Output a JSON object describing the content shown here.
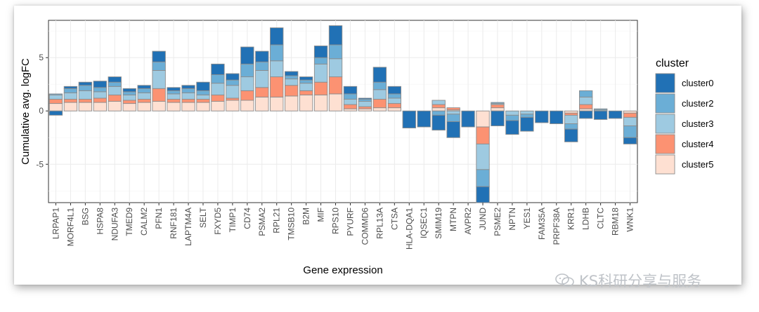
{
  "chart_data": {
    "type": "bar",
    "stacked": true,
    "title": "",
    "xlabel": "Gene expression",
    "ylabel": "Cumulative avg. logFC",
    "ylim": [
      -8.6,
      8.5
    ],
    "yticks": [
      -5,
      0,
      5
    ],
    "grid": true,
    "legend_title": "cluster",
    "legend_position": "right",
    "categories": [
      "LRPAP1",
      "MORF4L1",
      "BSG",
      "HSPA8",
      "NDUFA3",
      "TMED9",
      "CALM2",
      "PFN1",
      "RNF181",
      "LAPTM4A",
      "SELT",
      "FXYD5",
      "TIMP1",
      "CD74",
      "PSMA2",
      "RPL21",
      "TMSB10",
      "B2M",
      "MIF",
      "RPS10",
      "PYURF",
      "COMMD6",
      "RPL13A",
      "CTSA",
      "HLA-DQA1",
      "IQSEC1",
      "SMIM19",
      "MTPN",
      "AVPR2",
      "JUND",
      "PSME2",
      "NPTN",
      "YES1",
      "FAM35A",
      "PRPF38A",
      "KRR1",
      "LDHB",
      "CLTC",
      "RBM18",
      "WNK1"
    ],
    "series": [
      {
        "name": "cluster0",
        "color": "#2171b5",
        "values": [
          -0.4,
          0.2,
          0.3,
          0.6,
          0.5,
          0.3,
          0.3,
          1.0,
          0.3,
          0.3,
          0.8,
          1.0,
          0.6,
          1.6,
          1.0,
          1.6,
          0.4,
          0.3,
          1.1,
          1.8,
          0.7,
          0.1,
          1.4,
          0.7,
          -1.6,
          -1.5,
          -1.4,
          -1.5,
          -1.5,
          -1.5,
          -1.4,
          -1.3,
          -1.3,
          -1.1,
          -1.2,
          -1.2,
          -0.7,
          -0.8,
          -0.7,
          -0.6
        ]
      },
      {
        "name": "cluster2",
        "color": "#6baed6",
        "values": [
          0.1,
          0.4,
          0.5,
          0.4,
          0.4,
          0.3,
          0.4,
          0.8,
          0.3,
          0.4,
          0.4,
          0.8,
          0.5,
          1.2,
          0.8,
          1.5,
          0.3,
          0.3,
          0.6,
          1.3,
          0.5,
          0.2,
          0.7,
          0.4,
          0,
          0,
          -0.4,
          -0.7,
          0,
          -1.6,
          0.1,
          -0.5,
          -0.3,
          0,
          0,
          -0.5,
          0.6,
          0.1,
          0,
          -1.1
        ]
      },
      {
        "name": "cluster3",
        "color": "#9ecae1",
        "values": [
          0.4,
          0.6,
          0.8,
          0.6,
          0.8,
          0.5,
          0.6,
          1.7,
          0.5,
          0.6,
          0.4,
          1.1,
          1.2,
          1.3,
          1.6,
          1.5,
          0.6,
          0.7,
          1.7,
          1.7,
          0.5,
          0.5,
          0.9,
          0.5,
          0,
          0,
          0.4,
          -0.3,
          0,
          -2.4,
          0.1,
          -0.4,
          -0.3,
          0,
          0,
          -0.8,
          0.7,
          0.1,
          0,
          -0.8
        ]
      },
      {
        "name": "cluster4",
        "color": "#fc9272",
        "values": [
          0.4,
          0.3,
          0.3,
          0.4,
          0.6,
          0.3,
          0.3,
          1.2,
          0.3,
          0.3,
          0.3,
          0.6,
          0.2,
          0.9,
          0.9,
          1.9,
          1.0,
          0.4,
          1.2,
          1.6,
          0.4,
          0.2,
          0.8,
          0.4,
          0,
          0,
          0.3,
          0.2,
          0,
          -1.6,
          0.3,
          0,
          0,
          0,
          0,
          -0.2,
          0.4,
          0,
          0,
          -0.4
        ]
      },
      {
        "name": "cluster5",
        "color": "#fee0d2",
        "values": [
          0.7,
          0.8,
          0.8,
          0.8,
          0.9,
          0.7,
          0.8,
          0.9,
          0.8,
          0.8,
          0.8,
          0.9,
          1.0,
          1.0,
          1.3,
          1.3,
          1.4,
          1.5,
          1.5,
          1.6,
          0.2,
          0.2,
          0.3,
          0.3,
          0,
          0,
          0.3,
          0.1,
          0,
          -1.5,
          0.3,
          0,
          0,
          0,
          0,
          -0.2,
          0.2,
          0,
          0,
          -0.2
        ]
      }
    ]
  },
  "watermark": {
    "text": "KS科研分享与服务",
    "icon": "wechat-icon"
  }
}
